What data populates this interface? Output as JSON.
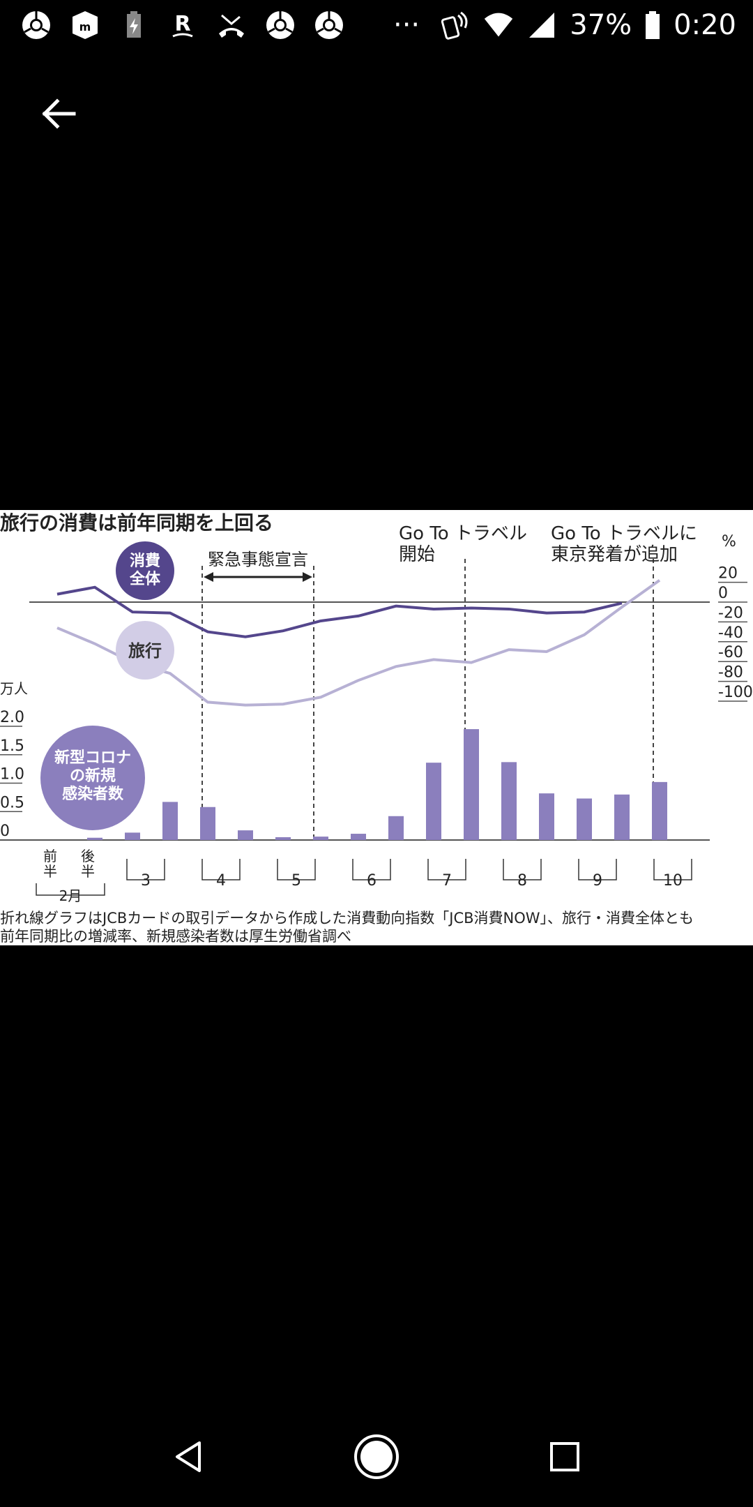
{
  "status_bar": {
    "left_icons": [
      "chrome-icon",
      "messenger-icon",
      "battery-saver-icon",
      "rakuten-icon",
      "missed-call-icon",
      "chrome-icon",
      "chrome-icon"
    ],
    "more": "···",
    "battery_percent": "37%",
    "time": "0:20"
  },
  "chart_data": {
    "type": "line",
    "title": "旅行の消費は前年同期を上回る",
    "badges": {
      "overall": "消費\n全体",
      "travel": "旅行",
      "infections": "新型コロナ\nの新規\n感染者数"
    },
    "annotations": {
      "emergency": "緊急事態宣言",
      "goto_start": "Go To トラベル\n開始",
      "goto_tokyo": "Go To トラベルに\n東京発着が追加"
    },
    "right_axis": {
      "unit": "%",
      "ticks": [
        "20",
        "0",
        "-20",
        "-40",
        "-60",
        "-80",
        "-100"
      ],
      "range": [
        -100,
        20
      ]
    },
    "left_axis": {
      "unit": "万人",
      "ticks": [
        "2.0",
        "1.5",
        "1.0",
        "0.5",
        "0"
      ],
      "range": [
        0,
        2.0
      ]
    },
    "x": {
      "first_half": "前\n半",
      "second_half": "後\n半",
      "feb": "2月",
      "months": [
        "3",
        "4",
        "5",
        "6",
        "7",
        "8",
        "9",
        "10"
      ]
    },
    "series": [
      {
        "name": "消費全体",
        "color": "#54468c",
        "values": [
          8,
          15,
          -10,
          -11,
          -30,
          -35,
          -29,
          -19,
          -14,
          -4,
          -7,
          -6,
          -7,
          -11,
          -10,
          -1
        ]
      },
      {
        "name": "旅行",
        "color": "#b7b1d4",
        "values": [
          -26,
          -42,
          -61,
          -72,
          -101,
          -104,
          -103,
          -96,
          -79,
          -65,
          -58,
          -61,
          -48,
          -50,
          -33,
          -5,
          22
        ]
      }
    ],
    "infections": {
      "color": "#8b7fbd",
      "values": [
        0,
        0.04,
        0.13,
        0.67,
        0.58,
        0.17,
        0.05,
        0.06,
        0.11,
        0.42,
        1.36,
        1.95,
        1.37,
        0.82,
        0.73,
        0.8,
        1.02
      ]
    },
    "footnote": [
      "折れ線グラフはJCBカードの取引データから作成した消費動向指数「JCB消費NOW」、旅行・消費全体とも",
      "前年同期比の増減率、新規感染者数は厚生労働省調べ"
    ]
  },
  "nav_bar": {
    "back": "back-icon",
    "home": "home-icon",
    "recents": "recents-icon"
  }
}
